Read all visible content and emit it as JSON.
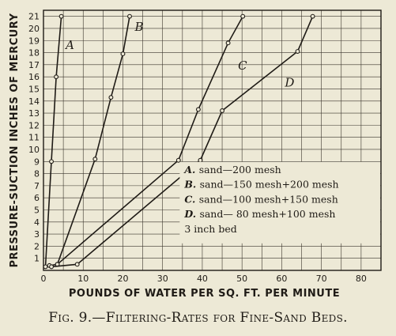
{
  "chart_data": {
    "type": "line",
    "caption": "Fig. 9.—Filtering-Rates for Fine-Sand Beds.",
    "xlabel": "POUNDS OF WATER PER SQ. FT. PER MINUTE",
    "ylabel": "PRESSURE-SUCTION INCHES OF MERCURY",
    "xlim": [
      0,
      85
    ],
    "ylim": [
      0,
      21.5
    ],
    "xticks": [
      0,
      10,
      20,
      30,
      40,
      50,
      60,
      70,
      80
    ],
    "yticks": [
      1,
      2,
      3,
      4,
      5,
      6,
      7,
      8,
      9,
      10,
      11,
      12,
      13,
      14,
      15,
      16,
      17,
      18,
      19,
      20,
      21
    ],
    "grid": true,
    "series": [
      {
        "name": "A",
        "points": [
          [
            0.5,
            0.3
          ],
          [
            2,
            9
          ],
          [
            3.2,
            16
          ],
          [
            4.5,
            21
          ]
        ]
      },
      {
        "name": "B",
        "points": [
          [
            1.5,
            0.4
          ],
          [
            3.5,
            0.5
          ],
          [
            13,
            9.2
          ],
          [
            17,
            14.3
          ],
          [
            20,
            17.9
          ],
          [
            21.7,
            21
          ]
        ]
      },
      {
        "name": "C",
        "points": [
          [
            3.5,
            0.5
          ],
          [
            34,
            9.1
          ],
          [
            39,
            13.3
          ],
          [
            46.5,
            18.8
          ],
          [
            50.2,
            21
          ]
        ]
      },
      {
        "name": "D",
        "points": [
          [
            2,
            0.3
          ],
          [
            8.5,
            0.5
          ],
          [
            39.5,
            9.1
          ],
          [
            45,
            13.2
          ],
          [
            64,
            18.1
          ],
          [
            67.8,
            21
          ]
        ]
      }
    ],
    "legend": [
      {
        "key": "A.",
        "text": "sand—200 mesh"
      },
      {
        "key": "B.",
        "text": "sand—150 mesh+200 mesh"
      },
      {
        "key": "C.",
        "text": "sand—100 mesh+150 mesh"
      },
      {
        "key": "D.",
        "text": "sand— 80 mesh+100 mesh"
      },
      {
        "key": "",
        "text": "3 inch bed"
      }
    ],
    "legend_position": "bottom-right"
  }
}
